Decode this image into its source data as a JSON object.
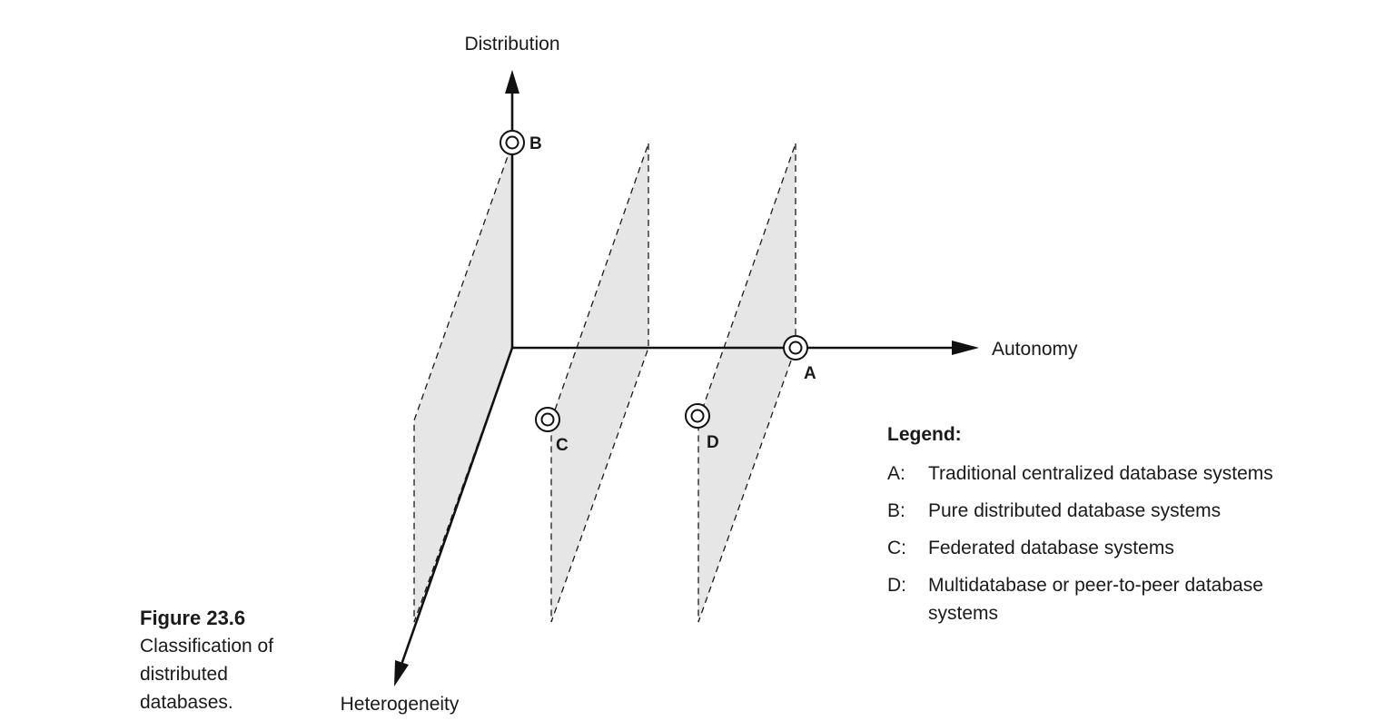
{
  "axes": {
    "vertical": "Distribution",
    "horizontal": "Autonomy",
    "depth": "Heterogeneity"
  },
  "points": [
    {
      "id": "A",
      "label": "A"
    },
    {
      "id": "B",
      "label": "B"
    },
    {
      "id": "C",
      "label": "C"
    },
    {
      "id": "D",
      "label": "D"
    }
  ],
  "legend": {
    "title": "Legend:",
    "entries": [
      {
        "key": "A:",
        "text": "Traditional centralized database systems"
      },
      {
        "key": "B:",
        "text": "Pure distributed database systems"
      },
      {
        "key": "C:",
        "text": "Federated database systems"
      },
      {
        "key": "D:",
        "text": "Multidatabase or peer-to-peer database systems"
      }
    ]
  },
  "caption": {
    "figure_number": "Figure 23.6",
    "text": "Classification of distributed databases."
  }
}
